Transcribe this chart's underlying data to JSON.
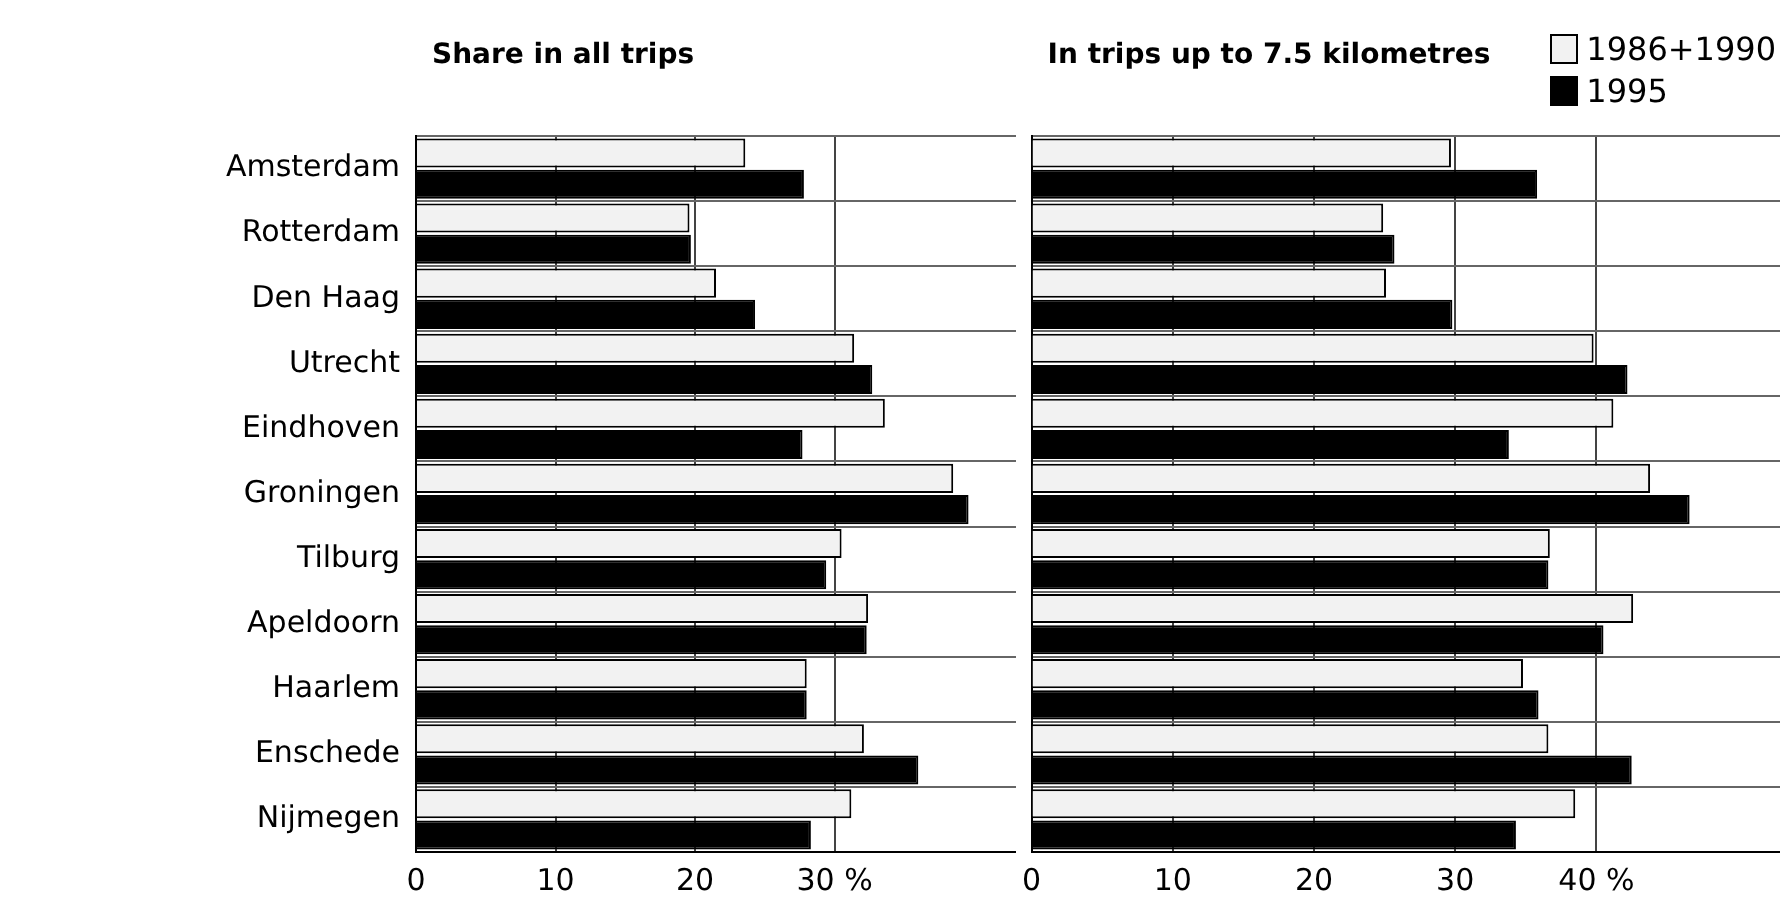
{
  "chart_data": [
    {
      "type": "bar",
      "orientation": "horizontal",
      "title": "Share in all trips",
      "categories": [
        "Amsterdam",
        "Rotterdam",
        "Den Haag",
        "Utrecht",
        "Eindhoven",
        "Groningen",
        "Tilburg",
        "Apeldoorn",
        "Haarlem",
        "Enschede",
        "Nijmegen"
      ],
      "series": [
        {
          "color": "#f2f2f2",
          "values": [
            23.6,
            19.6,
            21.5,
            31.4,
            33.6,
            38.5,
            30.5,
            32.4,
            28.0,
            32.1,
            31.2
          ]
        },
        {
          "color": "#000000",
          "values": [
            27.8,
            19.7,
            24.3,
            32.7,
            27.7,
            39.6,
            29.4,
            32.3,
            28.0,
            36.0,
            28.3
          ]
        }
      ],
      "xlim": [
        0,
        43
      ],
      "xticks": [
        0,
        10,
        20,
        {
          "value": 30,
          "label": "30 %"
        }
      ],
      "grid": true
    },
    {
      "type": "bar",
      "orientation": "horizontal",
      "title": "In trips up to 7.5 kilometres",
      "categories": [
        null,
        null,
        null,
        null,
        null,
        null,
        null,
        null,
        null,
        null,
        null
      ],
      "series": [
        {
          "name": "1986+1990",
          "color": "#f2f2f2",
          "values": [
            29.7,
            24.9,
            25.1,
            39.8,
            41.2,
            43.8,
            36.7,
            42.6,
            34.8,
            36.6,
            38.5
          ]
        },
        {
          "name": "1995",
          "color": "#000000",
          "values": [
            35.8,
            25.7,
            29.8,
            42.2,
            33.8,
            46.6,
            36.6,
            40.5,
            35.9,
            42.5,
            34.3
          ]
        }
      ],
      "xlim": [
        0,
        53
      ],
      "xticks": [
        0,
        10,
        20,
        30,
        {
          "value": 40,
          "label": "40 %"
        }
      ],
      "grid": true,
      "legend": "top right",
      "tick_labels": "x"
    }
  ]
}
